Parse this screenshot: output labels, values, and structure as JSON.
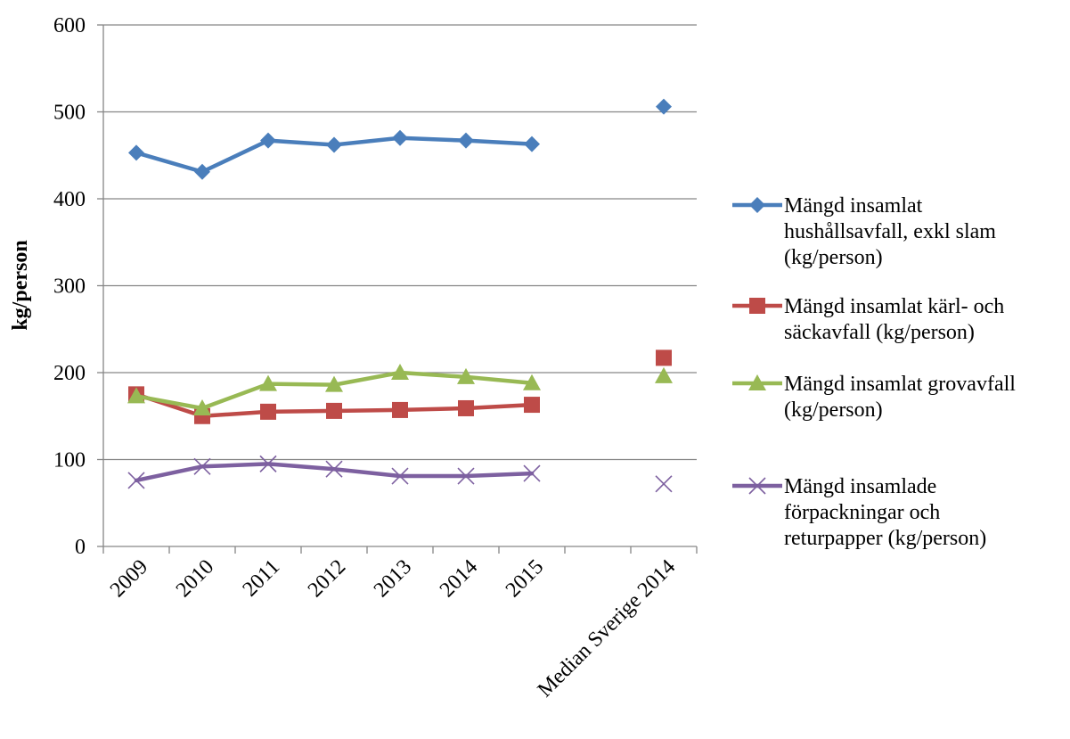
{
  "chart_data": {
    "type": "line",
    "categories": [
      "2009",
      "2010",
      "2011",
      "2012",
      "2013",
      "2014",
      "2015",
      "",
      "Median Sverige 2014"
    ],
    "xlabel": "",
    "ylabel": "kg/person",
    "ylim": [
      0,
      600
    ],
    "yticks": [
      "0",
      "100",
      "200",
      "300",
      "400",
      "500",
      "600"
    ],
    "grid": "horizontal",
    "legend_position": "right",
    "series": [
      {
        "name": "Mängd insamlat hushållsavfall, exkl slam (kg/person)",
        "legend_lines": [
          "Mängd insamlat",
          "hushållsavfall, exkl slam",
          "(kg/person)"
        ],
        "color": "#4a7ebb",
        "marker": "diamond",
        "values": [
          453,
          431,
          467,
          462,
          470,
          467,
          463,
          null,
          506
        ]
      },
      {
        "name": "Mängd insamlat kärl- och säckavfall (kg/person)",
        "legend_lines": [
          "Mängd insamlat kärl- och",
          "säckavfall (kg/person)"
        ],
        "color": "#be4b48",
        "marker": "square",
        "values": [
          175,
          150,
          155,
          156,
          157,
          159,
          163,
          null,
          217
        ]
      },
      {
        "name": "Mängd insamlat grovavfall (kg/person)",
        "legend_lines": [
          "Mängd insamlat grovavfall",
          "(kg/person)"
        ],
        "color": "#98b954",
        "marker": "triangle",
        "values": [
          173,
          159,
          187,
          186,
          200,
          195,
          188,
          null,
          196
        ]
      },
      {
        "name": "Mängd insamlade förpackningar och returpapper (kg/person)",
        "legend_lines": [
          "Mängd insamlade",
          "förpackningar och",
          "returpapper (kg/person)"
        ],
        "color": "#7d60a0",
        "marker": "x",
        "values": [
          76,
          92,
          95,
          89,
          81,
          81,
          84,
          null,
          72
        ]
      }
    ]
  }
}
